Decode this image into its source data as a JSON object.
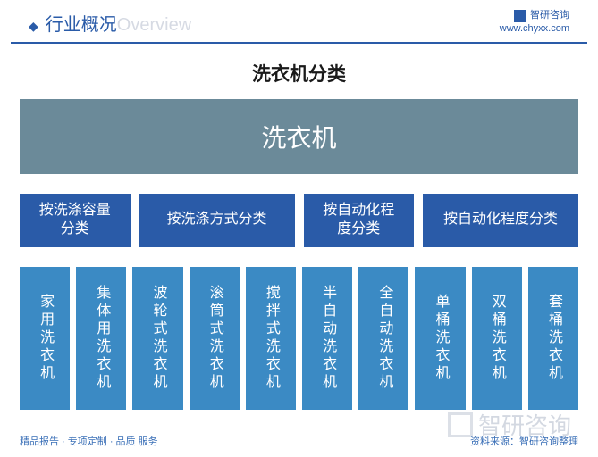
{
  "header": {
    "title_cn": "行业概况",
    "title_en": "Overview",
    "brand": "智研咨询",
    "url": "www.chyxx.com"
  },
  "diagram": {
    "title": "洗衣机分类",
    "root": {
      "label": "洗衣机",
      "bg": "#6b8a99",
      "fg": "#ffffff",
      "fontsize": 28
    },
    "level2": {
      "bg": "#2a5ba8",
      "fg": "#ffffff",
      "fontsize": 16,
      "nodes": [
        {
          "label": "按洗涤容量分类",
          "flex": 1.0
        },
        {
          "label": "按洗涤方式分类",
          "flex": 1.45
        },
        {
          "label": "按自动化程度分类",
          "flex": 1.0
        },
        {
          "label": "按自动化程度分类",
          "flex": 1.45
        }
      ]
    },
    "level3": {
      "bg": "#3b8ac4",
      "fg": "#ffffff",
      "fontsize": 16,
      "nodes": [
        "家用洗衣机",
        "集体用洗衣机",
        "波轮式洗衣机",
        "滚筒式洗衣机",
        "搅拌式洗衣机",
        "半自动洗衣机",
        "全自动洗衣机",
        "单桶洗衣机",
        "双桶洗衣机",
        "套桶洗衣机"
      ]
    }
  },
  "footer": {
    "left": "精品报告 · 专项定制 · 品质 服务",
    "right": "资料来源：智研咨询整理"
  },
  "watermark": "智研咨询"
}
